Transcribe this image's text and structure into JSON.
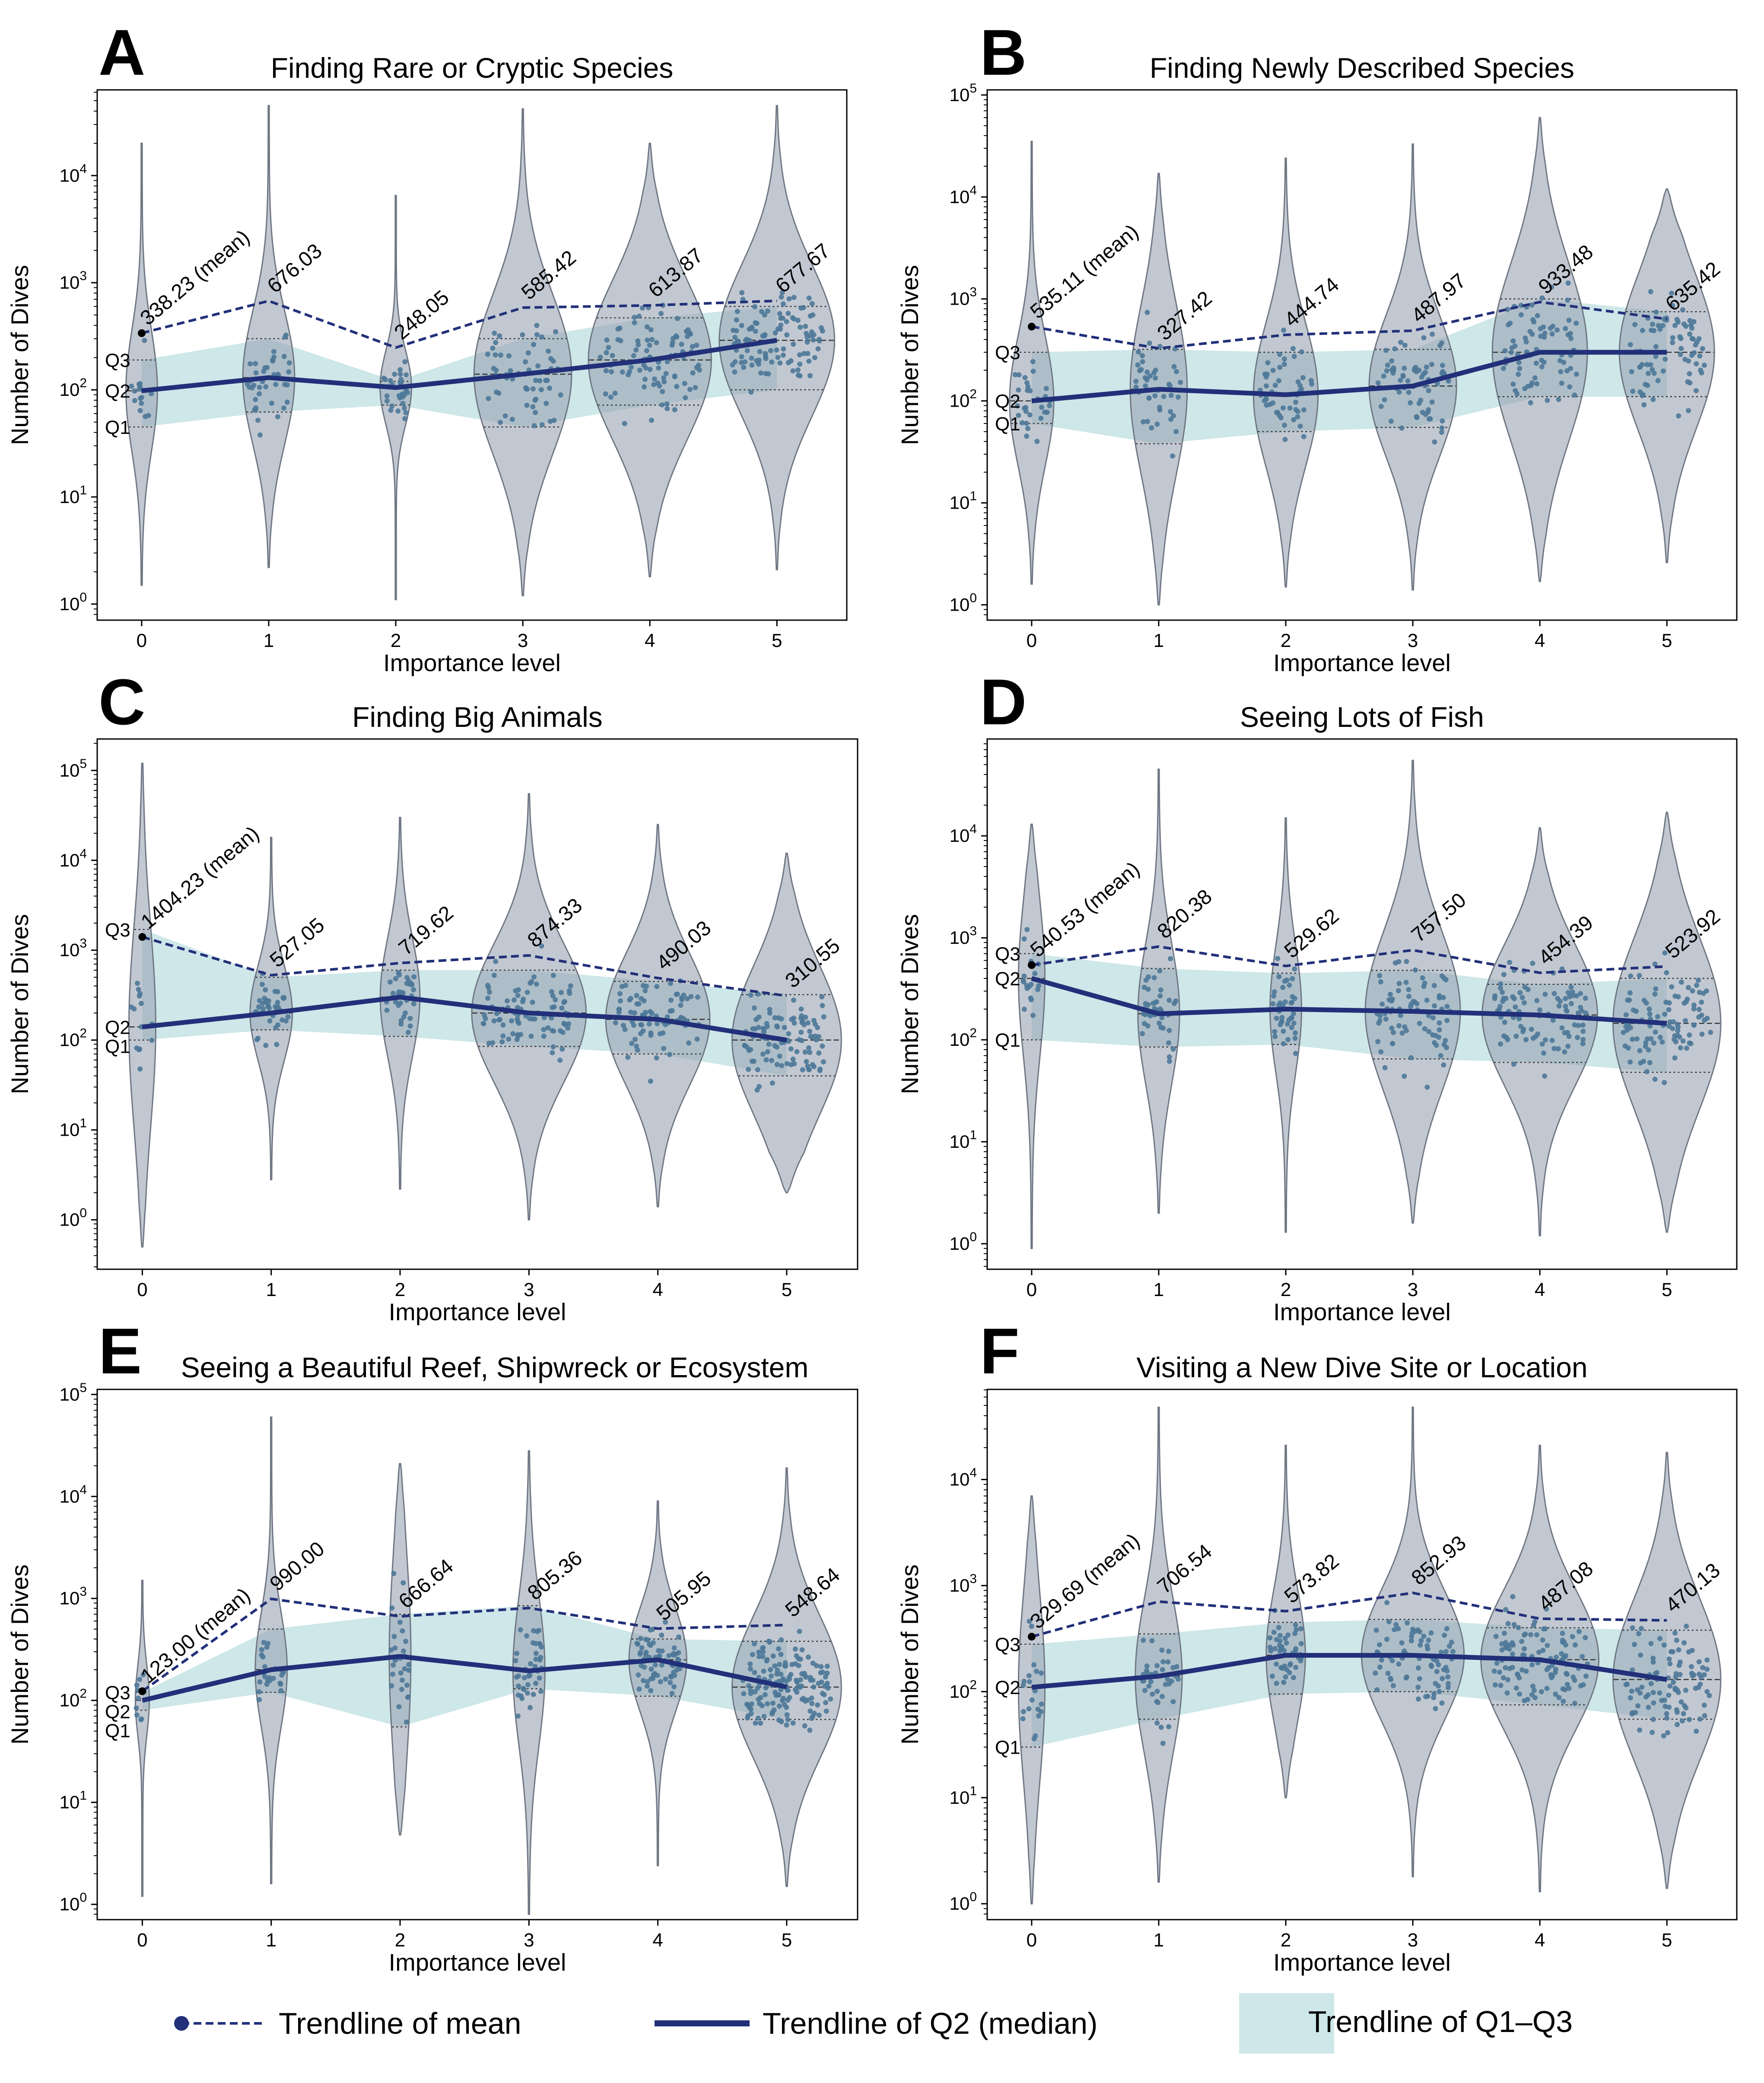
{
  "figure": {
    "xlabel": "Importance level",
    "ylabel": "Number of Dives",
    "categories": [
      "0",
      "1",
      "2",
      "3",
      "4",
      "5"
    ],
    "quartile_labels": [
      "Q3",
      "Q2",
      "Q1"
    ],
    "colors": {
      "violin": "#9aa3b3",
      "band": "#7fbfc4",
      "line": "#22307a",
      "dots": "#4e7898",
      "axis": "#000000"
    }
  },
  "legend": {
    "mean": "Trendline of mean",
    "median": "Trendline of Q2 (median)",
    "iqr": "Trendline of Q1–Q3"
  },
  "chart_data": [
    {
      "panel": "A",
      "type": "violin",
      "title": "Finding Rare or Cryptic Species",
      "xlabel": "Importance level",
      "ylabel": "Number of Dives",
      "yscale": "log",
      "ylim_exp": [
        -0.15,
        4.8
      ],
      "ytick_exps": [
        0,
        1,
        2,
        3,
        4
      ],
      "categories": [
        "0",
        "1",
        "2",
        "3",
        "4",
        "5"
      ],
      "mean": [
        338.23,
        676.03,
        248.05,
        585.42,
        613.87,
        677.67
      ],
      "mean_labels": [
        "338.23 (mean)",
        "676.03",
        "248.05",
        "585.42",
        "613.87",
        "677.67"
      ],
      "q1": [
        45,
        62,
        72,
        45,
        72,
        100
      ],
      "q2": [
        98,
        130,
        105,
        140,
        190,
        290
      ],
      "q3": [
        190,
        300,
        120,
        300,
        470,
        600
      ],
      "range": [
        [
          1.5,
          20000
        ],
        [
          2.2,
          45000
        ],
        [
          1.1,
          6500
        ],
        [
          1.2,
          42000
        ],
        [
          1.8,
          20000
        ],
        [
          2.1,
          45000
        ]
      ],
      "n_points": [
        16,
        40,
        30,
        60,
        100,
        110
      ],
      "violin_halfwidth": [
        0.12,
        0.2,
        0.12,
        0.38,
        0.48,
        0.45
      ]
    },
    {
      "panel": "B",
      "type": "violin",
      "title": "Finding Newly Described Species",
      "xlabel": "Importance level",
      "ylabel": "Number of Dives",
      "yscale": "log",
      "ylim_exp": [
        -0.15,
        5.05
      ],
      "ytick_exps": [
        0,
        1,
        2,
        3,
        4,
        5
      ],
      "categories": [
        "0",
        "1",
        "2",
        "3",
        "4",
        "5"
      ],
      "mean": [
        535.11,
        327.42,
        444.74,
        487.97,
        933.48,
        635.42
      ],
      "mean_labels": [
        "535.11 (mean)",
        "327.42",
        "444.74",
        "487.97",
        "933.48",
        "635.42"
      ],
      "q1": [
        60,
        38,
        50,
        55,
        110,
        110
      ],
      "q2": [
        100,
        130,
        115,
        140,
        300,
        300
      ],
      "q3": [
        300,
        320,
        300,
        320,
        1000,
        750
      ],
      "range": [
        [
          1.6,
          35000
        ],
        [
          1.0,
          17000
        ],
        [
          1.5,
          24000
        ],
        [
          1.4,
          33000
        ],
        [
          1.7,
          60000
        ],
        [
          2.6,
          12000
        ]
      ],
      "n_points": [
        30,
        45,
        50,
        70,
        80,
        80
      ],
      "violin_halfwidth": [
        0.17,
        0.22,
        0.25,
        0.34,
        0.37,
        0.37
      ]
    },
    {
      "panel": "C",
      "type": "violin",
      "title": "Finding Big Animals",
      "xlabel": "Importance level",
      "ylabel": "Number of Dives",
      "yscale": "log",
      "ylim_exp": [
        -0.55,
        5.35
      ],
      "ytick_exps": [
        0,
        1,
        2,
        3,
        4,
        5
      ],
      "categories": [
        "0",
        "1",
        "2",
        "3",
        "4",
        "5"
      ],
      "mean": [
        1404.23,
        527.05,
        719.62,
        874.33,
        490.03,
        310.55
      ],
      "mean_labels": [
        "1404.23 (mean)",
        "527.05",
        "719.62",
        "874.33",
        "490.03",
        "310.55"
      ],
      "q1": [
        100,
        130,
        110,
        85,
        70,
        40
      ],
      "q2": [
        140,
        200,
        300,
        200,
        170,
        100
      ],
      "q3": [
        1700,
        500,
        600,
        600,
        450,
        320
      ],
      "range": [
        [
          0.5,
          120000
        ],
        [
          2.8,
          18000
        ],
        [
          2.2,
          30000
        ],
        [
          1.0,
          55000
        ],
        [
          1.4,
          25000
        ],
        [
          2.0,
          12000
        ]
      ],
      "n_points": [
        14,
        40,
        35,
        90,
        80,
        100
      ],
      "violin_halfwidth": [
        0.1,
        0.16,
        0.15,
        0.44,
        0.4,
        0.42
      ]
    },
    {
      "panel": "D",
      "type": "violin",
      "title": "Seeing Lots of Fish",
      "xlabel": "Importance level",
      "ylabel": "Number of Dives",
      "yscale": "log",
      "ylim_exp": [
        -0.25,
        4.95
      ],
      "ytick_exps": [
        0,
        1,
        2,
        3,
        4
      ],
      "categories": [
        "0",
        "1",
        "2",
        "3",
        "4",
        "5"
      ],
      "mean": [
        540.53,
        820.38,
        529.62,
        757.5,
        454.39,
        523.92
      ],
      "mean_labels": [
        "540.53 (mean)",
        "820.38",
        "529.62",
        "757.50",
        "454.39",
        "523.92"
      ],
      "q1": [
        100,
        85,
        90,
        65,
        60,
        48
      ],
      "q2": [
        400,
        180,
        200,
        190,
        175,
        145
      ],
      "q3": [
        700,
        500,
        450,
        480,
        350,
        400
      ],
      "range": [
        [
          0.9,
          13000
        ],
        [
          2.0,
          45000
        ],
        [
          1.3,
          15000
        ],
        [
          1.6,
          55000
        ],
        [
          1.2,
          12000
        ],
        [
          1.3,
          17000
        ]
      ],
      "n_points": [
        18,
        45,
        40,
        80,
        95,
        100
      ],
      "violin_halfwidth": [
        0.1,
        0.16,
        0.12,
        0.37,
        0.45,
        0.42
      ]
    },
    {
      "panel": "E",
      "type": "violin",
      "title": "Seeing a Beautiful Reef, Shipwreck or Ecosystem",
      "xlabel": "Importance level",
      "ylabel": "Number of Dives",
      "yscale": "log",
      "ylim_exp": [
        -0.15,
        5.05
      ],
      "ytick_exps": [
        0,
        1,
        2,
        3,
        4,
        5
      ],
      "categories": [
        "0",
        "1",
        "2",
        "3",
        "4",
        "5"
      ],
      "mean": [
        123.0,
        990.0,
        666.64,
        805.36,
        505.95,
        548.64
      ],
      "mean_labels": [
        "123.00 (mean)",
        "990.00",
        "666.64",
        "805.36",
        "505.95",
        "548.64"
      ],
      "q1": [
        80,
        120,
        55,
        130,
        110,
        65
      ],
      "q2": [
        100,
        200,
        270,
        195,
        250,
        135
      ],
      "q3": [
        120,
        500,
        700,
        850,
        400,
        380
      ],
      "range": [
        [
          1.2,
          1500
        ],
        [
          1.6,
          60000
        ],
        [
          4.8,
          21000
        ],
        [
          0.8,
          28000
        ],
        [
          2.4,
          9000
        ],
        [
          1.5,
          19000
        ]
      ],
      "n_points": [
        10,
        25,
        28,
        40,
        70,
        160
      ],
      "violin_halfwidth": [
        0.05,
        0.12,
        0.08,
        0.12,
        0.22,
        0.42
      ]
    },
    {
      "panel": "F",
      "type": "violin",
      "title": "Visiting a New Dive Site or Location",
      "xlabel": "Importance level",
      "ylabel": "Number of Dives",
      "yscale": "log",
      "ylim_exp": [
        -0.15,
        4.85
      ],
      "ytick_exps": [
        0,
        1,
        2,
        3,
        4
      ],
      "categories": [
        "0",
        "1",
        "2",
        "3",
        "4",
        "5"
      ],
      "mean": [
        329.69,
        706.54,
        573.82,
        852.93,
        487.08,
        470.13
      ],
      "mean_labels": [
        "329.69 (mean)",
        "706.54",
        "573.82",
        "852.93",
        "487.08",
        "470.13"
      ],
      "q1": [
        30,
        55,
        95,
        100,
        75,
        55
      ],
      "q2": [
        110,
        140,
        220,
        220,
        200,
        130
      ],
      "q3": [
        280,
        350,
        450,
        480,
        400,
        380
      ],
      "range": [
        [
          1.0,
          7000
        ],
        [
          1.6,
          48000
        ],
        [
          10,
          21000
        ],
        [
          1.8,
          48000
        ],
        [
          1.3,
          21000
        ],
        [
          1.4,
          18000
        ]
      ],
      "n_points": [
        20,
        40,
        45,
        80,
        110,
        100
      ],
      "violin_halfwidth": [
        0.1,
        0.18,
        0.15,
        0.4,
        0.46,
        0.42
      ]
    }
  ]
}
